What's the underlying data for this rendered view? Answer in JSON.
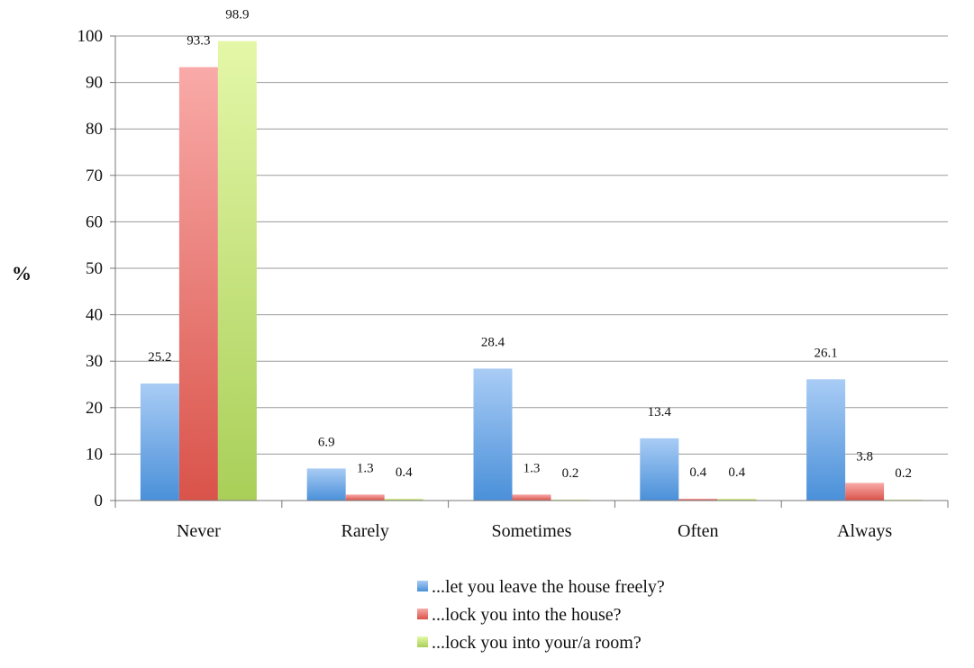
{
  "chart_data": {
    "type": "bar",
    "ylabel": "%",
    "ylim": [
      0,
      100
    ],
    "yticks": [
      0,
      10,
      20,
      30,
      40,
      50,
      60,
      70,
      80,
      90,
      100
    ],
    "grid": true,
    "legend_position": "bottom",
    "categories": [
      "Never",
      "Rarely",
      "Sometimes",
      "Often",
      "Always"
    ],
    "series": [
      {
        "name": "...let you leave the house freely?",
        "color": "#5b9bd5",
        "values": [
          25.2,
          6.9,
          28.4,
          13.4,
          26.1
        ],
        "labels": [
          "25.2",
          "6.9",
          "28.4",
          "13.4",
          "26.1"
        ]
      },
      {
        "name": "...lock you into the house?",
        "color": "#e06666",
        "values": [
          93.3,
          1.3,
          1.3,
          0.4,
          3.8
        ],
        "labels": [
          "93.3",
          "1.3",
          "1.3",
          "0.4",
          "3.8"
        ]
      },
      {
        "name": "...lock you into your/a room?",
        "color": "#b4d87a",
        "values": [
          98.9,
          0.4,
          0.2,
          0.4,
          0.2
        ],
        "labels": [
          "98.9",
          "0.4",
          "0.2",
          "0.4",
          "0.2"
        ]
      }
    ]
  }
}
